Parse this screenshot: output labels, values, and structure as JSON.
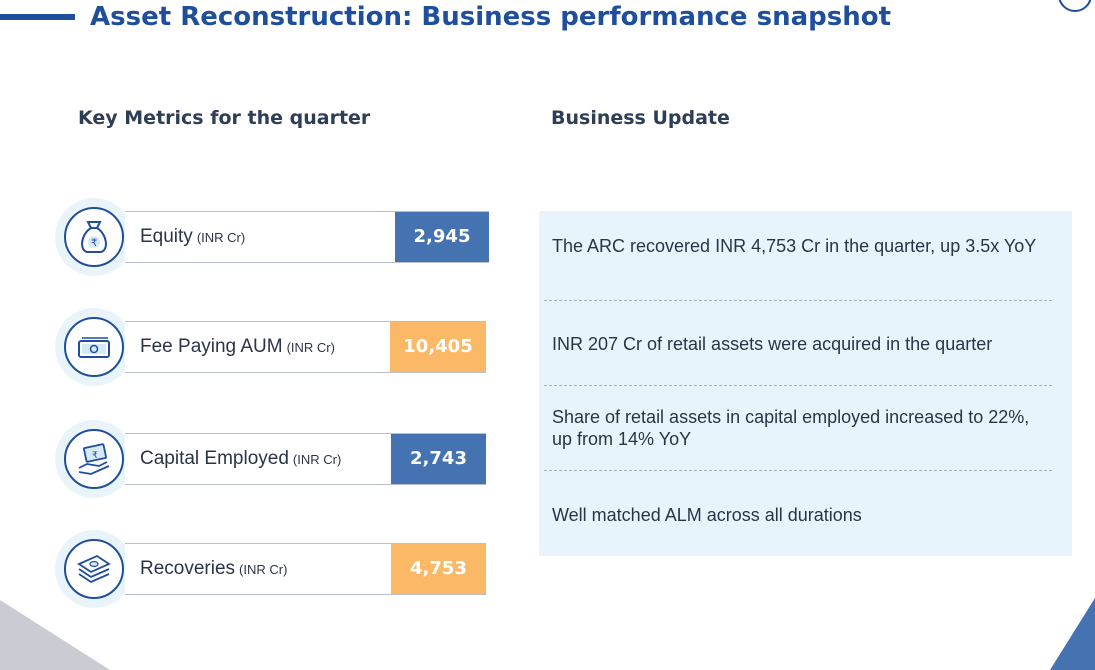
{
  "header": {
    "title": "Asset Reconstruction: Business performance snapshot"
  },
  "key_metrics": {
    "heading": "Key Metrics for the quarter",
    "items": [
      {
        "label": "Equity",
        "unit": "(INR Cr)",
        "value": "2,945",
        "icon": "money-bag-rupee-icon",
        "accent": "#4572b0"
      },
      {
        "label": "Fee Paying AUM",
        "unit": "(INR Cr)",
        "value": "10,405",
        "icon": "banknotes-icon",
        "accent": "#fbb866"
      },
      {
        "label": "Capital Employed",
        "unit": "(INR Cr)",
        "value": "2,743",
        "icon": "hand-holding-money-icon",
        "accent": "#4572b0"
      },
      {
        "label": "Recoveries",
        "unit": "(INR Cr)",
        "value": "4,753",
        "icon": "cash-stack-icon",
        "accent": "#fbb866"
      }
    ]
  },
  "business_update": {
    "heading": "Business Update",
    "items": [
      "The ARC recovered INR 4,753 Cr in the quarter, up 3.5x YoY",
      "INR 207 Cr of retail assets were acquired in the quarter",
      "Share of retail assets in capital employed increased to 22%, up from 14% YoY",
      "Well matched ALM across all durations"
    ]
  },
  "colors": {
    "title": "#1f4e9c",
    "blue_accent": "#4572b0",
    "orange_accent": "#fbb866",
    "panel_bg": "#e8f4fb"
  }
}
